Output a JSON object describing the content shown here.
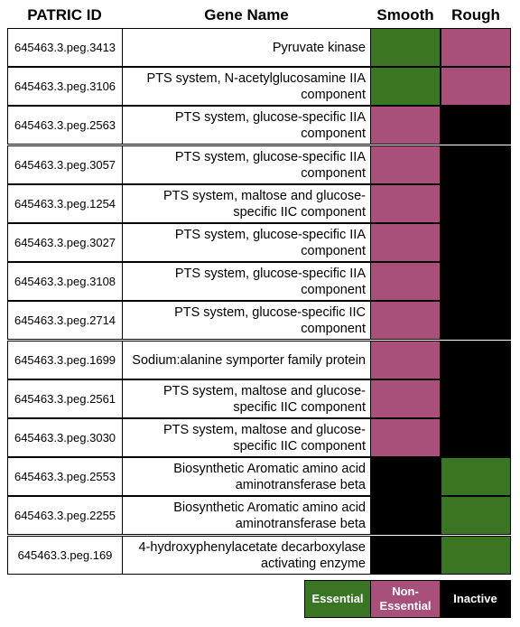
{
  "headers": {
    "id": "PATRIC ID",
    "name": "Gene Name",
    "smooth": "Smooth",
    "rough": "Rough"
  },
  "colors": {
    "Essential": "#3a7524",
    "Non-Essential": "#a8507a",
    "Inactive": "#000000"
  },
  "legend": {
    "essential": "Essential",
    "non_essential": "Non-\nEssential",
    "inactive": "Inactive"
  },
  "chart_data": {
    "type": "table",
    "columns": [
      "PATRIC ID",
      "Gene Name",
      "Smooth",
      "Rough"
    ],
    "rows": [
      {
        "id": "645463.3.peg.3413",
        "name": "Pyruvate kinase",
        "smooth": "Essential",
        "rough": "Non-Essential"
      },
      {
        "id": "645463.3.peg.3106",
        "name": "PTS system, N-acetylglucosamine IIA component",
        "smooth": "Essential",
        "rough": "Non-Essential"
      },
      {
        "id": "645463.3.peg.2563",
        "name": "PTS system, glucose-specific IIA component",
        "smooth": "Non-Essential",
        "rough": "Inactive"
      },
      {
        "id": "645463.3.peg.3057",
        "name": "PTS system, glucose-specific IIA component",
        "smooth": "Non-Essential",
        "rough": "Inactive"
      },
      {
        "id": "645463.3.peg.1254",
        "name": "PTS system, maltose and glucose-specific IIC component",
        "smooth": "Non-Essential",
        "rough": "Inactive"
      },
      {
        "id": "645463.3.peg.3027",
        "name": "PTS system, glucose-specific IIA component",
        "smooth": "Non-Essential",
        "rough": "Inactive"
      },
      {
        "id": "645463.3.peg.3108",
        "name": "PTS system, glucose-specific IIA component",
        "smooth": "Non-Essential",
        "rough": "Inactive"
      },
      {
        "id": "645463.3.peg.2714",
        "name": "PTS system, glucose-specific IIC component",
        "smooth": "Non-Essential",
        "rough": "Inactive"
      },
      {
        "id": "645463.3.peg.1699",
        "name": "Sodium:alanine symporter family protein",
        "smooth": "Non-Essential",
        "rough": "Inactive"
      },
      {
        "id": "645463.3.peg.2561",
        "name": "PTS system, maltose and glucose-specific IIC component",
        "smooth": "Non-Essential",
        "rough": "Inactive"
      },
      {
        "id": "645463.3.peg.3030",
        "name": "PTS system, maltose and glucose-specific IIC component",
        "smooth": "Non-Essential",
        "rough": "Inactive"
      },
      {
        "id": "645463.3.peg.2553",
        "name": "Biosynthetic Aromatic amino acid aminotransferase beta",
        "smooth": "Inactive",
        "rough": "Essential"
      },
      {
        "id": "645463.3.peg.2255",
        "name": "Biosynthetic Aromatic amino acid aminotransferase beta",
        "smooth": "Inactive",
        "rough": "Essential"
      },
      {
        "id": "645463.3.peg.169",
        "name": "4-hydroxyphenylacetate decarboxylase activating enzyme",
        "smooth": "Inactive",
        "rough": "Essential"
      }
    ]
  }
}
